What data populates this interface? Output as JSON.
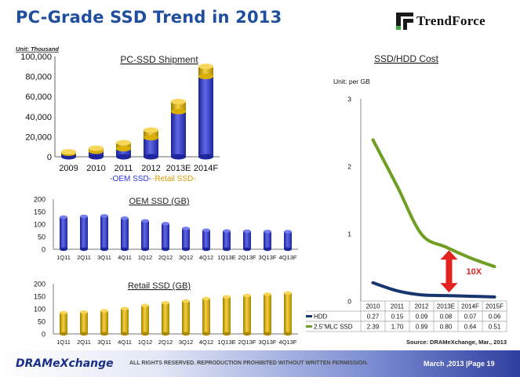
{
  "title": "PC-Grade SSD Trend in 2013",
  "brand": "TrendForce",
  "unit_label": "Unit: Thousand",
  "footer": {
    "logo": "DRAMeXchange",
    "rights": "ALL RIGHTS RESERVED. REPRODUCTION PROHIBITED WITHOUT WRITTEN PERMISSION.",
    "page": "March ,2013 |Page 19"
  },
  "colors": {
    "title": "#1f4e9c",
    "oem": "#2b36e0",
    "retail": "#f2c200",
    "hdd_line": "#17356e",
    "ssd_line": "#6f9e22",
    "arrow": "#e4231f",
    "chart_title": "#222222"
  },
  "chart_data": [
    {
      "type": "bar",
      "stacked": true,
      "title": "PC-SSD Shipment",
      "unit": "Unit: Thousand",
      "categories": [
        "2009",
        "2010",
        "2011",
        "2012",
        "2013E",
        "2014F"
      ],
      "series": [
        {
          "name": "OEM SSD",
          "values": [
            3500,
            5500,
            8000,
            19000,
            45000,
            80000
          ]
        },
        {
          "name": "Retail SSD",
          "values": [
            1500,
            3000,
            6000,
            7500,
            10000,
            10000
          ]
        }
      ],
      "ylim": [
        0,
        100000
      ],
      "yticks": [
        "0",
        "20,000",
        "40,000",
        "60,000",
        "80,000",
        "100,000"
      ],
      "legend": [
        "-OEM SSD-",
        "-Retail SSD-"
      ],
      "legend_position": "bottom"
    },
    {
      "type": "bar",
      "title": "OEM SSD (GB)",
      "categories": [
        "1Q11",
        "2Q11",
        "3Q11",
        "4Q11",
        "1Q12",
        "2Q12",
        "3Q12",
        "4Q12",
        "1Q13E",
        "2Q13F",
        "3Q13F",
        "4Q13F"
      ],
      "values": [
        128,
        131,
        133,
        124,
        113,
        102,
        83,
        76,
        73,
        72,
        71,
        70
      ],
      "ylim": [
        0,
        200
      ],
      "yticks": [
        "0",
        "50",
        "100",
        "150",
        "200"
      ]
    },
    {
      "type": "bar",
      "title": "Retail SSD (GB)",
      "categories": [
        "1Q11",
        "2Q11",
        "3Q11",
        "4Q11",
        "1Q12",
        "2Q12",
        "3Q12",
        "4Q12",
        "1Q13E",
        "2Q13F",
        "3Q13F",
        "4Q13F"
      ],
      "values": [
        85,
        87,
        92,
        101,
        113,
        124,
        131,
        141,
        148,
        153,
        158,
        163
      ],
      "ylim": [
        0,
        200
      ],
      "yticks": [
        "0",
        "50",
        "100",
        "150",
        "200"
      ]
    },
    {
      "type": "line",
      "title": "SSD/HDD Cost",
      "unit": "Unit: per GB",
      "x": [
        "2010",
        "2011",
        "2012",
        "2013E",
        "2014F",
        "2015F"
      ],
      "series": [
        {
          "name": "HDD",
          "values": [
            0.27,
            0.15,
            0.09,
            0.08,
            0.07,
            0.06
          ],
          "labels": [
            "0.27",
            "0.15",
            "0.09",
            "0.08",
            "0.07",
            "0.06"
          ]
        },
        {
          "name": "2.5\"MLC SSD",
          "values": [
            2.39,
            1.7,
            0.99,
            0.8,
            0.64,
            0.51
          ],
          "labels": [
            "2.39",
            "1.70",
            "0.99",
            "0.80",
            "0.64",
            "0.51"
          ]
        }
      ],
      "ylim": [
        0,
        3
      ],
      "yticks": [
        "0",
        "1",
        "2",
        "3"
      ],
      "annotation": "10X",
      "source": "Source:  DRAMeXchange, Mar., 2013",
      "smooth": true
    }
  ]
}
